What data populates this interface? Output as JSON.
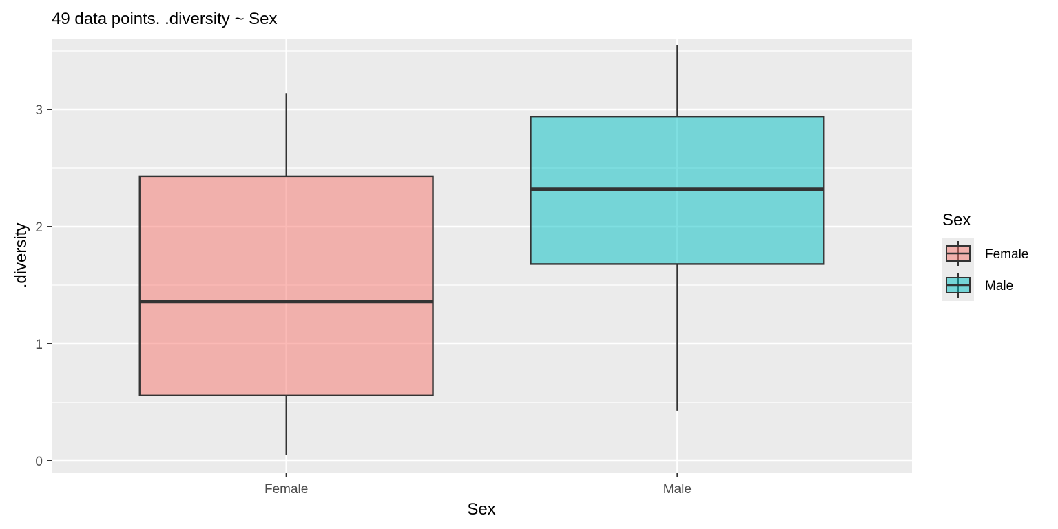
{
  "chart_data": {
    "type": "boxplot",
    "title": "49 data points. .diversity ~ Sex",
    "xlabel": "Sex",
    "ylabel": ".diversity",
    "categories": [
      "Female",
      "Male"
    ],
    "ylim": [
      -0.1,
      3.6
    ],
    "y_ticks": [
      0,
      1,
      2,
      3
    ],
    "y_tick_labels": [
      "0",
      "1",
      "2",
      "3"
    ],
    "grid": true,
    "series": [
      {
        "name": "Female",
        "color": "#F8766D",
        "fill_alpha": 0.5,
        "min": 0.05,
        "q1": 0.56,
        "median": 1.36,
        "q3": 2.43,
        "max": 3.14
      },
      {
        "name": "Male",
        "color": "#00BFC4",
        "fill_alpha": 0.5,
        "min": 0.43,
        "q1": 1.68,
        "median": 2.32,
        "q3": 2.94,
        "max": 3.55
      }
    ],
    "legend": {
      "title": "Sex",
      "position": "right",
      "entries": [
        "Female",
        "Male"
      ]
    }
  }
}
